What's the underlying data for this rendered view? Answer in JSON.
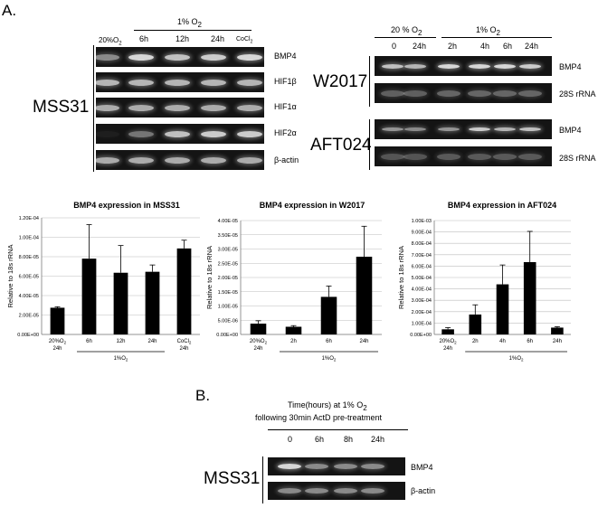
{
  "panel_a": {
    "letter": "A.",
    "mss31": {
      "cell_line": "MSS31",
      "group_label": "1% O",
      "group_sub": "2",
      "lanes": [
        "20%O",
        "6h",
        "12h",
        "24h",
        "CoCl"
      ],
      "lane_subs": [
        "2",
        "",
        "",
        "",
        "2"
      ],
      "rows": [
        "BMP4",
        "HIF1β",
        "HIF1α",
        "HIF2α",
        "β-actin"
      ]
    },
    "mouse": {
      "header_left": "20 % O",
      "header_left_sub": "2",
      "header_right": "1% O",
      "header_right_sub": "2",
      "lanes": [
        "0",
        "24h",
        "2h",
        "4h",
        "6h",
        "24h"
      ],
      "w2017": {
        "name": "W2017",
        "rows": [
          "BMP4",
          "28S rRNA"
        ]
      },
      "aft024": {
        "name": "AFT024",
        "rows": [
          "BMP4",
          "28S rRNA"
        ]
      }
    }
  },
  "chart_data": [
    {
      "type": "bar",
      "title": "BMP4 expression in MSS31",
      "ylabel": "Relative to 18s rRNA",
      "ylim": [
        0,
        0.00012
      ],
      "yticks": [
        "0.00E+00",
        "2.00E-05",
        "4.00E-05",
        "6.00E-05",
        "8.00E-05",
        "1.00E-04",
        "1.20E-04"
      ],
      "categories": [
        "20%O2 24h",
        "6h",
        "12h",
        "24h",
        "CoCl2 24h"
      ],
      "values": [
        2.75e-05,
        7.8e-05,
        6.35e-05,
        6.45e-05,
        8.85e-05
      ],
      "errors": [
        1e-06,
        3.5e-05,
        2.8e-05,
        7e-06,
        8.5e-06
      ],
      "xlabels": [
        {
          "l1": "20%O",
          "s": "2",
          "l2": "24h"
        },
        {
          "l1": "6h"
        },
        {
          "l1": "12h"
        },
        {
          "l1": "24h"
        },
        {
          "l1": "CoCl",
          "s": "2",
          "l2": "24h"
        }
      ],
      "group": {
        "label": "1%O",
        "sub": "2",
        "from": 1,
        "to": 3
      },
      "grid": true
    },
    {
      "type": "bar",
      "title": "BMP4 expression in W2017",
      "ylabel": "Relative to 18s rRNA",
      "ylim": [
        0,
        4e-05
      ],
      "yticks": [
        "0.00E+00",
        "5.00E-06",
        "1.00E-05",
        "1.50E-05",
        "2.00E-05",
        "2.50E-05",
        "3.00E-05",
        "3.50E-05",
        "4.00E-05"
      ],
      "categories": [
        "20%O2 24h",
        "2h",
        "6h",
        "24h"
      ],
      "values": [
        3.8e-06,
        2.7e-06,
        1.32e-05,
        2.73e-05
      ],
      "errors": [
        1e-06,
        4e-07,
        3.8e-06,
        1.07e-05
      ],
      "xlabels": [
        {
          "l1": "20%O",
          "s": "2",
          "l2": "24h"
        },
        {
          "l1": "2h"
        },
        {
          "l1": "6h"
        },
        {
          "l1": "24h"
        }
      ],
      "group": {
        "label": "1%O",
        "sub": "2",
        "from": 1,
        "to": 3
      },
      "grid": true
    },
    {
      "type": "bar",
      "title": "BMP4 expression in AFT024",
      "ylabel": "Relative to 18s rRNA",
      "ylim": [
        0,
        0.001
      ],
      "yticks": [
        "0.00E+00",
        "1.00E-04",
        "2.00E-04",
        "3.00E-04",
        "4.00E-04",
        "5.00E-04",
        "6.00E-04",
        "7.00E-04",
        "8.00E-04",
        "9.00E-04",
        "1.00E-03"
      ],
      "categories": [
        "20%O2 24h",
        "2h",
        "4h",
        "6h",
        "24h"
      ],
      "values": [
        4.5e-05,
        0.000175,
        0.00044,
        0.000635,
        6e-05
      ],
      "errors": [
        1.5e-05,
        8.5e-05,
        0.00017,
        0.00027,
        8e-06
      ],
      "xlabels": [
        {
          "l1": "20%O",
          "s": "2",
          "l2": "24h"
        },
        {
          "l1": "2h"
        },
        {
          "l1": "4h"
        },
        {
          "l1": "6h"
        },
        {
          "l1": "24h"
        }
      ],
      "group": {
        "label": "1%O",
        "sub": "2",
        "from": 1,
        "to": 4
      },
      "grid": true
    }
  ],
  "panel_b": {
    "letter": "B.",
    "title_l1a": "Time(hours) at 1% O",
    "title_sub": "2",
    "title_l2": "following 30min ActD pre-treatment",
    "cell_line": "MSS31",
    "lanes": [
      "0",
      "6h",
      "8h",
      "24h"
    ],
    "rows": [
      "BMP4",
      "β-actin"
    ]
  }
}
